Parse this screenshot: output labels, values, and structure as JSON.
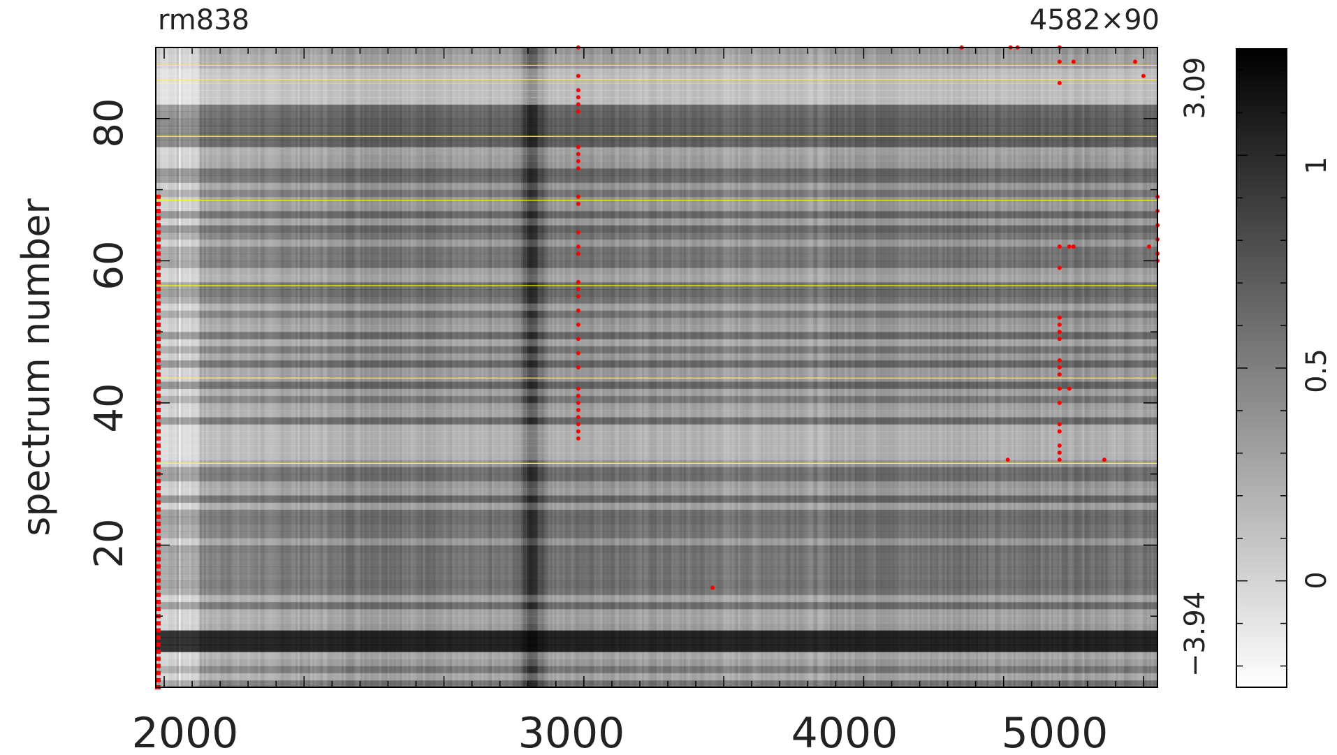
{
  "chart_data": {
    "type": "heatmap",
    "title_left": "rm838",
    "title_right": "4582×90",
    "ylabel": "spectrum number",
    "xlim": [
      1970,
      5550
    ],
    "ylim": [
      0,
      90
    ],
    "x_ticks_major": [
      "2000",
      "3000",
      "4000",
      "5000"
    ],
    "y_ticks_major": [
      "20",
      "40",
      "60",
      "80"
    ],
    "right_labels": [
      "3.09",
      "−3.94"
    ],
    "colorbar": {
      "ticks": [
        "0",
        "0.5",
        "1"
      ],
      "range": [
        -0.25,
        1.25
      ],
      "colors": [
        "#ffffff",
        "#000000"
      ]
    },
    "yellow_lines_y": [
      31.5,
      43.5,
      56.5,
      68.5,
      77.5,
      85.5,
      87.5
    ],
    "dark_column_x": 3310,
    "dark_row_y": 6.5,
    "red_points": [
      {
        "x": 3480,
        "y": 35
      },
      {
        "x": 3480,
        "y": 36
      },
      {
        "x": 3480,
        "y": 37
      },
      {
        "x": 3480,
        "y": 38
      },
      {
        "x": 3480,
        "y": 39
      },
      {
        "x": 3480,
        "y": 40
      },
      {
        "x": 3480,
        "y": 41
      },
      {
        "x": 3480,
        "y": 42
      },
      {
        "x": 3480,
        "y": 45
      },
      {
        "x": 3480,
        "y": 47
      },
      {
        "x": 3480,
        "y": 49
      },
      {
        "x": 3480,
        "y": 51
      },
      {
        "x": 3480,
        "y": 53
      },
      {
        "x": 3480,
        "y": 55
      },
      {
        "x": 3480,
        "y": 56
      },
      {
        "x": 3480,
        "y": 57
      },
      {
        "x": 3480,
        "y": 61
      },
      {
        "x": 3480,
        "y": 62
      },
      {
        "x": 3480,
        "y": 64
      },
      {
        "x": 3480,
        "y": 68
      },
      {
        "x": 3480,
        "y": 69
      },
      {
        "x": 3480,
        "y": 73
      },
      {
        "x": 3480,
        "y": 74
      },
      {
        "x": 3480,
        "y": 75
      },
      {
        "x": 3480,
        "y": 76
      },
      {
        "x": 3480,
        "y": 81
      },
      {
        "x": 3480,
        "y": 82
      },
      {
        "x": 3480,
        "y": 83
      },
      {
        "x": 3480,
        "y": 84
      },
      {
        "x": 3480,
        "y": 86
      },
      {
        "x": 3480,
        "y": 90
      },
      {
        "x": 3960,
        "y": 14
      },
      {
        "x": 4850,
        "y": 90
      },
      {
        "x": 5015,
        "y": 32
      },
      {
        "x": 5025,
        "y": 90
      },
      {
        "x": 5050,
        "y": 90
      },
      {
        "x": 5200,
        "y": 32
      },
      {
        "x": 5200,
        "y": 33
      },
      {
        "x": 5200,
        "y": 34
      },
      {
        "x": 5200,
        "y": 36
      },
      {
        "x": 5200,
        "y": 37
      },
      {
        "x": 5200,
        "y": 40
      },
      {
        "x": 5200,
        "y": 42
      },
      {
        "x": 5200,
        "y": 44
      },
      {
        "x": 5200,
        "y": 45
      },
      {
        "x": 5200,
        "y": 46
      },
      {
        "x": 5200,
        "y": 49
      },
      {
        "x": 5200,
        "y": 50
      },
      {
        "x": 5200,
        "y": 51
      },
      {
        "x": 5200,
        "y": 52
      },
      {
        "x": 5200,
        "y": 59
      },
      {
        "x": 5200,
        "y": 62
      },
      {
        "x": 5200,
        "y": 85
      },
      {
        "x": 5200,
        "y": 88
      },
      {
        "x": 5200,
        "y": 90
      },
      {
        "x": 5235,
        "y": 42
      },
      {
        "x": 5235,
        "y": 62
      },
      {
        "x": 5250,
        "y": 62
      },
      {
        "x": 5250,
        "y": 88
      },
      {
        "x": 5360,
        "y": 32
      },
      {
        "x": 5470,
        "y": 88
      },
      {
        "x": 5500,
        "y": 86
      },
      {
        "x": 5520,
        "y": 62
      },
      {
        "x": 5550,
        "y": 60
      },
      {
        "x": 5550,
        "y": 61
      },
      {
        "x": 5550,
        "y": 63
      },
      {
        "x": 5550,
        "y": 65
      },
      {
        "x": 5550,
        "y": 67
      },
      {
        "x": 5550,
        "y": 69
      }
    ]
  }
}
